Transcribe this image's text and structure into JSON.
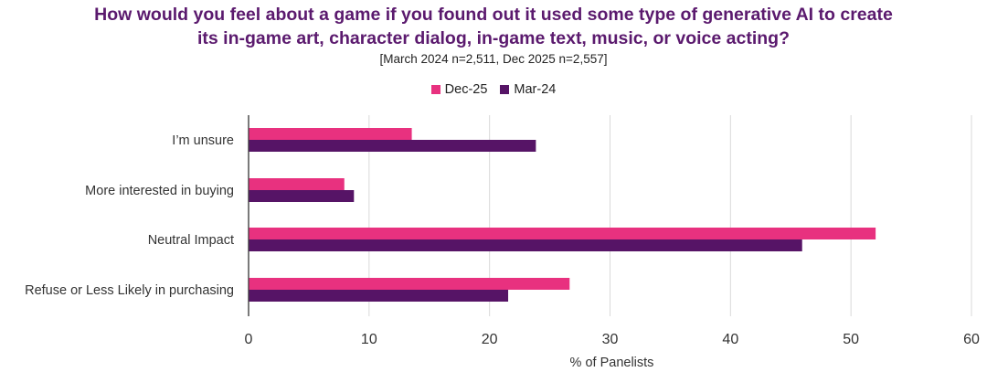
{
  "chart_data": {
    "type": "bar",
    "orientation": "horizontal",
    "title_line1": "How would you feel about a game if you found out it used some type of generative AI to create",
    "title_line2": "its in-game art, character dialog, in-game text, music, or voice acting?",
    "subtitle": "[March 2024 n=2,511, Dec 2025 n=2,557]",
    "categories": [
      "I’m unsure",
      "More interested in buying",
      "Neutral Impact",
      "Refuse or Less Likely in purchasing"
    ],
    "series": [
      {
        "name": "Dec-25",
        "color": "#e8317f",
        "values": [
          13.5,
          7.9,
          52.0,
          26.6
        ]
      },
      {
        "name": "Mar-24",
        "color": "#561466",
        "values": [
          23.8,
          8.7,
          45.9,
          21.5
        ]
      }
    ],
    "xlabel": "% of Panelists",
    "xlim": [
      0,
      60
    ],
    "xticks": [
      "0",
      "10",
      "20",
      "30",
      "40",
      "50",
      "60"
    ],
    "grid": true,
    "legend_position": "top-center"
  }
}
